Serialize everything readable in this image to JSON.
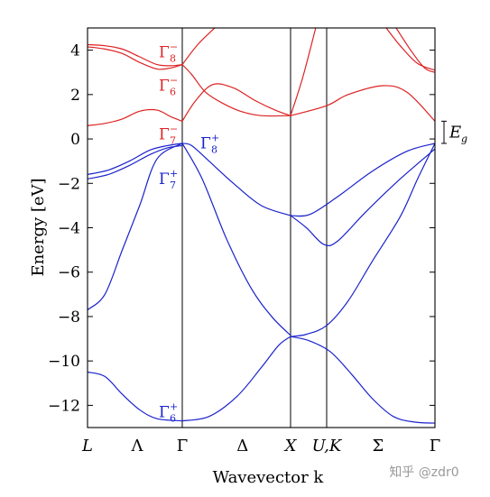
{
  "chart_data": {
    "type": "line",
    "title": "",
    "xlabel": "Wavevector k",
    "ylabel": "Energy [eV]",
    "ylim": [
      -13,
      5
    ],
    "yticks": [
      4,
      2,
      0,
      -2,
      -4,
      -6,
      -8,
      -10,
      -12
    ],
    "xlim": [
      0,
      1
    ],
    "grid": false,
    "legend": "none",
    "kpoints": [
      {
        "label": "L",
        "x": 0.0,
        "italic": true
      },
      {
        "label": "Λ",
        "x": 0.143,
        "italic": false
      },
      {
        "label": "Γ",
        "x": 0.2727,
        "italic": false
      },
      {
        "label": "Δ",
        "x": 0.446,
        "italic": false
      },
      {
        "label": "X",
        "x": 0.5844,
        "italic": true
      },
      {
        "label": "U,K",
        "x": 0.6883,
        "italic": true
      },
      {
        "label": "Σ",
        "x": 0.836,
        "italic": false
      },
      {
        "label": "Γ",
        "x": 1.0,
        "italic": false
      }
    ],
    "vlines": [
      0.2727,
      0.5844,
      0.6883
    ],
    "colors": {
      "conduction": "#dd2222",
      "valence": "#1a22cc",
      "axis": "#000000"
    },
    "series": [
      {
        "group": "conduction",
        "x": [
          0,
          0.05,
          0.1,
          0.15,
          0.2,
          0.24,
          0.2727
        ],
        "y": [
          4.25,
          4.2,
          4.05,
          3.7,
          3.35,
          3.3,
          3.35
        ]
      },
      {
        "group": "conduction",
        "x": [
          0,
          0.05,
          0.1,
          0.15,
          0.2,
          0.24,
          0.2727
        ],
        "y": [
          4.15,
          4.05,
          3.85,
          3.45,
          3.15,
          3.2,
          3.35
        ]
      },
      {
        "group": "conduction",
        "x": [
          0,
          0.05,
          0.1,
          0.15,
          0.2,
          0.24,
          0.2727
        ],
        "y": [
          0.6,
          0.7,
          0.9,
          1.25,
          1.3,
          1.0,
          0.8
        ]
      },
      {
        "group": "conduction",
        "x": [
          0.2727,
          0.31,
          0.36,
          0.42,
          0.48,
          0.54,
          0.5844
        ],
        "y": [
          0.8,
          1.7,
          2.45,
          2.3,
          1.75,
          1.3,
          1.05
        ]
      },
      {
        "group": "conduction",
        "x": [
          0.2727,
          0.3,
          0.34,
          0.39,
          0.44,
          0.5,
          0.5844
        ],
        "y": [
          3.35,
          2.9,
          2.1,
          1.6,
          1.25,
          1.05,
          1.05
        ]
      },
      {
        "group": "conduction",
        "x": [
          0.2727,
          0.32,
          0.38
        ],
        "y": [
          3.35,
          4.3,
          5.2
        ]
      },
      {
        "group": "conduction",
        "x": [
          0.5844,
          0.6883,
          0.75,
          0.85,
          0.92,
          1.0
        ],
        "y": [
          1.05,
          1.5,
          2.0,
          2.4,
          2.1,
          0.8
        ]
      },
      {
        "group": "conduction",
        "x": [
          0.5844,
          0.62,
          0.66
        ],
        "y": [
          1.05,
          2.8,
          5.2
        ]
      },
      {
        "group": "conduction",
        "x": [
          0.85,
          0.9,
          0.95,
          1.0
        ],
        "y": [
          5.2,
          4.2,
          3.4,
          3.1
        ]
      },
      {
        "group": "conduction",
        "x": [
          0.88,
          0.93,
          0.97,
          1.0
        ],
        "y": [
          5.2,
          4.0,
          3.2,
          3.0
        ]
      },
      {
        "group": "valence",
        "x": [
          0,
          0.06,
          0.12,
          0.18,
          0.23,
          0.2727
        ],
        "y": [
          -1.6,
          -1.4,
          -1.0,
          -0.5,
          -0.3,
          -0.2
        ]
      },
      {
        "group": "valence",
        "x": [
          0,
          0.06,
          0.12,
          0.18,
          0.23,
          0.2727
        ],
        "y": [
          -1.8,
          -1.6,
          -1.2,
          -0.7,
          -0.4,
          -0.3
        ]
      },
      {
        "group": "valence",
        "x": [
          0,
          0.05,
          0.1,
          0.15,
          0.2,
          0.2727
        ],
        "y": [
          -7.7,
          -7.0,
          -5.0,
          -3.0,
          -0.9,
          -0.2
        ]
      },
      {
        "group": "valence",
        "x": [
          0,
          0.05,
          0.1,
          0.15,
          0.2,
          0.2727
        ],
        "y": [
          -10.5,
          -10.7,
          -11.5,
          -12.2,
          -12.6,
          -12.7
        ]
      },
      {
        "group": "valence",
        "x": [
          0.2727,
          0.3,
          0.35,
          0.42,
          0.5,
          0.5844
        ],
        "y": [
          -0.2,
          -0.3,
          -1.0,
          -2.0,
          -3.0,
          -3.45
        ]
      },
      {
        "group": "valence",
        "x": [
          0.2727,
          0.33,
          0.4,
          0.47,
          0.53,
          0.5844
        ],
        "y": [
          -0.2,
          -1.8,
          -4.5,
          -6.7,
          -8.0,
          -8.85
        ]
      },
      {
        "group": "valence",
        "x": [
          0.2727,
          0.35,
          0.43,
          0.5,
          0.55,
          0.5844
        ],
        "y": [
          -12.7,
          -12.5,
          -11.6,
          -10.3,
          -9.3,
          -8.9
        ]
      },
      {
        "group": "valence",
        "x": [
          0.5844,
          0.64,
          0.72,
          0.82,
          0.92,
          1.0
        ],
        "y": [
          -3.45,
          -3.4,
          -2.6,
          -1.45,
          -0.55,
          -0.2
        ]
      },
      {
        "group": "valence",
        "x": [
          0.5844,
          0.63,
          0.68,
          0.72,
          0.8,
          0.9,
          1.0
        ],
        "y": [
          -3.45,
          -4.0,
          -4.75,
          -4.6,
          -3.3,
          -1.8,
          -0.45
        ]
      },
      {
        "group": "valence",
        "x": [
          0.5844,
          0.63,
          0.6883,
          0.75,
          0.82,
          0.9,
          0.95,
          1.0
        ],
        "y": [
          -8.9,
          -8.8,
          -8.4,
          -7.3,
          -5.5,
          -3.5,
          -1.8,
          -0.2
        ]
      },
      {
        "group": "valence",
        "x": [
          0.5844,
          0.64,
          0.7,
          0.76,
          0.82,
          0.88,
          0.94,
          1.0
        ],
        "y": [
          -8.9,
          -9.1,
          -9.6,
          -10.6,
          -11.7,
          -12.5,
          -12.75,
          -12.8
        ]
      }
    ],
    "annotations": [
      {
        "base": "Γ",
        "sup": "−",
        "sub": "8",
        "x": 0.2727,
        "y": 4.0,
        "side": "left",
        "group": "conduction"
      },
      {
        "base": "Γ",
        "sup": "−",
        "sub": "6",
        "x": 0.2727,
        "y": 2.5,
        "side": "left",
        "group": "conduction"
      },
      {
        "base": "Γ",
        "sup": "−",
        "sub": "7",
        "x": 0.2727,
        "y": 0.3,
        "side": "left",
        "group": "conduction"
      },
      {
        "base": "Γ",
        "sup": "+",
        "sub": "8",
        "x": 0.2727,
        "y": -0.1,
        "side": "right",
        "group": "valence"
      },
      {
        "base": "Γ",
        "sup": "+",
        "sub": "7",
        "x": 0.2727,
        "y": -1.7,
        "side": "left",
        "group": "valence"
      },
      {
        "base": "Γ",
        "sup": "+",
        "sub": "6",
        "x": 0.2727,
        "y": -12.2,
        "side": "left",
        "group": "valence"
      }
    ],
    "gap_marker": {
      "label": "E",
      "sub": "g",
      "top": 0.8,
      "bottom": -0.2
    }
  },
  "watermark": "知乎 @zdr0"
}
